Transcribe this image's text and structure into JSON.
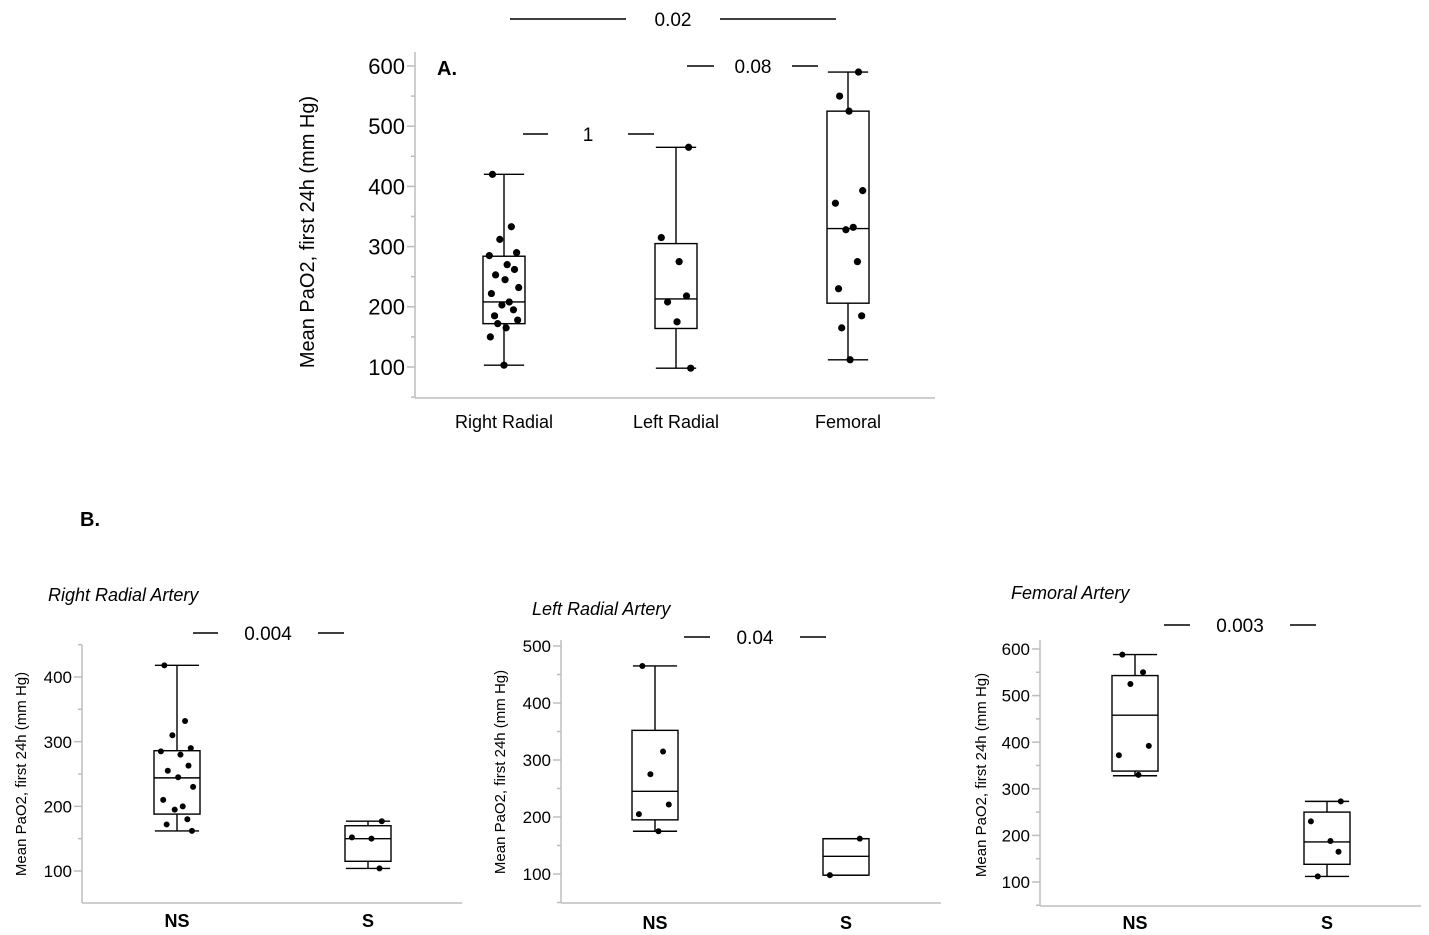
{
  "panel_a_label": "A.",
  "panel_b_label": "B.",
  "chart_data": [
    {
      "id": "A",
      "type": "box",
      "ylabel": "Mean PaO2, first 24h (mm Hg)",
      "ylim": [
        50,
        600
      ],
      "yticks": [
        100,
        200,
        300,
        400,
        500,
        600
      ],
      "categories": [
        "Right Radial",
        "Left Radial",
        "Femoral"
      ],
      "boxes": [
        {
          "min": 103,
          "q1": 172,
          "median": 208,
          "q3": 284,
          "max": 420
        },
        {
          "min": 98,
          "q1": 164,
          "median": 213,
          "q3": 305,
          "max": 465
        },
        {
          "min": 112,
          "q1": 206,
          "median": 330,
          "q3": 525,
          "max": 590
        }
      ],
      "points": [
        [
          420,
          333,
          312,
          290,
          285,
          270,
          262,
          253,
          245,
          232,
          222,
          208,
          203,
          195,
          185,
          178,
          172,
          165,
          150,
          103
        ],
        [
          465,
          315,
          275,
          218,
          208,
          175,
          98
        ],
        [
          590,
          550,
          525,
          393,
          372,
          332,
          328,
          275,
          230,
          185,
          165,
          112
        ]
      ],
      "comparisons": [
        {
          "from": 0,
          "to": 2,
          "label": "0.02"
        },
        {
          "from": 1,
          "to": 2,
          "label": "0.08"
        },
        {
          "from": 0,
          "to": 1,
          "label": "1"
        }
      ]
    },
    {
      "id": "B1",
      "type": "box",
      "title": "Right Radial Artery",
      "ylabel": "Mean PaO2, first 24h (mm Hg)",
      "ylim": [
        50,
        450
      ],
      "yticks": [
        100,
        200,
        300,
        400
      ],
      "categories": [
        "NS",
        "S"
      ],
      "boxes": [
        {
          "min": 162,
          "q1": 188,
          "median": 244,
          "q3": 286,
          "max": 418
        },
        {
          "min": 104,
          "q1": 115,
          "median": 150,
          "q3": 170,
          "max": 177
        }
      ],
      "points": [
        [
          418,
          332,
          310,
          290,
          285,
          280,
          263,
          255,
          245,
          230,
          210,
          200,
          195,
          180,
          172,
          162
        ],
        [
          177,
          152,
          150,
          104
        ]
      ],
      "comparisons": [
        {
          "from": 0,
          "to": 1,
          "label": "0.004"
        }
      ]
    },
    {
      "id": "B2",
      "type": "box",
      "title": "Left Radial Artery",
      "ylabel": "Mean PaO2, first 24h (mm Hg)",
      "ylim": [
        50,
        500
      ],
      "yticks": [
        100,
        200,
        300,
        400,
        500
      ],
      "categories": [
        "NS",
        "S"
      ],
      "boxes": [
        {
          "min": 175,
          "q1": 195,
          "median": 245,
          "q3": 352,
          "max": 465
        },
        {
          "min": 98,
          "q1": 98,
          "median": 131,
          "q3": 162,
          "max": 162
        }
      ],
      "points": [
        [
          465,
          315,
          275,
          222,
          205,
          175
        ],
        [
          162,
          98
        ]
      ],
      "comparisons": [
        {
          "from": 0,
          "to": 1,
          "label": "0.04"
        }
      ]
    },
    {
      "id": "B3",
      "type": "box",
      "title": "Femoral Artery",
      "ylabel": "Mean PaO2, first 24h (mm Hg)",
      "ylim": [
        50,
        600
      ],
      "yticks": [
        100,
        200,
        300,
        400,
        500,
        600
      ],
      "categories": [
        "NS",
        "S"
      ],
      "boxes": [
        {
          "min": 328,
          "q1": 338,
          "median": 458,
          "q3": 543,
          "max": 588
        },
        {
          "min": 112,
          "q1": 138,
          "median": 186,
          "q3": 250,
          "max": 273
        }
      ],
      "points": [
        [
          588,
          550,
          525,
          392,
          372,
          330
        ],
        [
          273,
          230,
          188,
          165,
          112
        ]
      ],
      "comparisons": [
        {
          "from": 0,
          "to": 1,
          "label": "0.003"
        }
      ]
    }
  ]
}
